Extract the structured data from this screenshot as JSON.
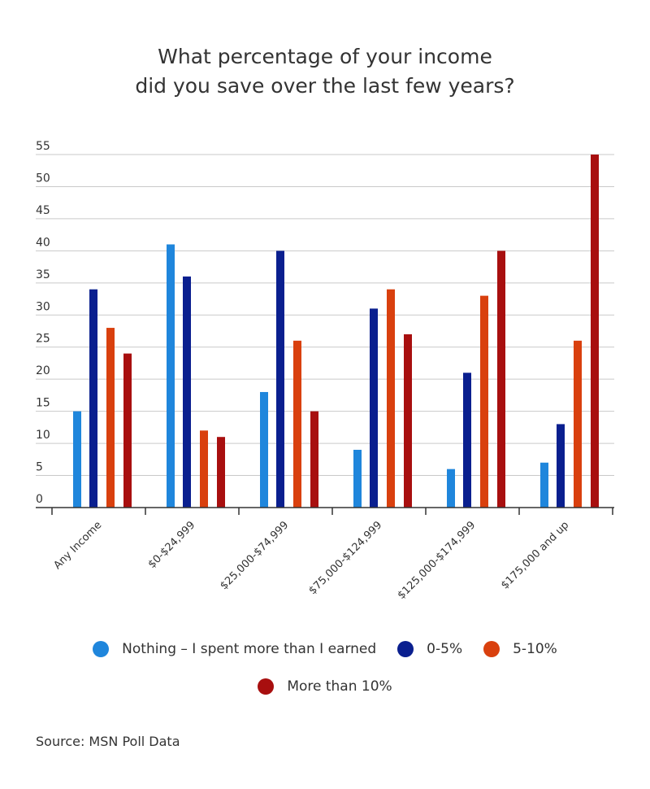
{
  "chart_data": {
    "type": "bar",
    "title_lines": [
      "What percentage of your income",
      "did you save over the last few years?"
    ],
    "categories": [
      "Any Income",
      "$0-$24,999",
      "$25,000-$74,999",
      "$75,000-$124,999",
      "$125,000-$174,999",
      "$175,000 and up"
    ],
    "series": [
      {
        "name": "Nothing – I spent more than I earned",
        "color": "#1f86dc",
        "values": [
          15,
          41,
          18,
          9,
          6,
          7
        ]
      },
      {
        "name": "0-5%",
        "color": "#0a1f8f",
        "values": [
          34,
          36,
          40,
          31,
          21,
          13
        ]
      },
      {
        "name": "5-10%",
        "color": "#d9400e",
        "values": [
          28,
          12,
          26,
          34,
          33,
          26
        ]
      },
      {
        "name": "More than 10%",
        "color": "#a80f0f",
        "values": [
          24,
          11,
          15,
          27,
          40,
          55
        ]
      }
    ],
    "yticks": [
      0,
      5,
      10,
      15,
      20,
      25,
      30,
      35,
      40,
      45,
      50,
      55
    ],
    "ylim": [
      0,
      55
    ],
    "grid": true,
    "legend_position": "bottom"
  },
  "source": "Source: MSN Poll Data"
}
